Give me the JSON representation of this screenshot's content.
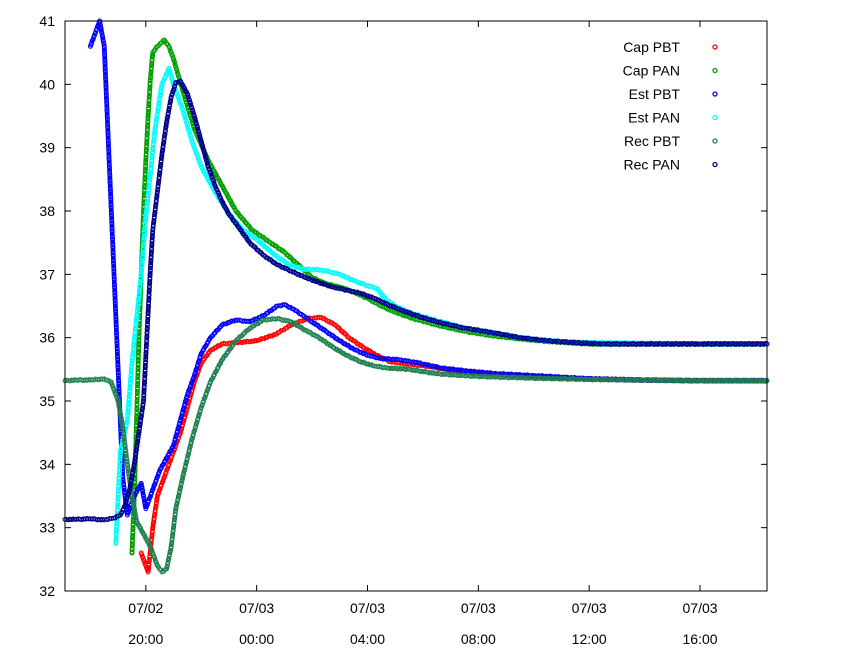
{
  "chart_data": {
    "type": "scatter",
    "title": "",
    "xlabel": "",
    "ylabel": "",
    "x_axis": {
      "type": "time",
      "min": "07/02 17:05",
      "max": "07/03 18:25",
      "ticks": [
        {
          "time": "07/02 20:00",
          "date_label": "07/02",
          "time_label": "20:00"
        },
        {
          "time": "07/03 00:00",
          "date_label": "07/03",
          "time_label": "00:00"
        },
        {
          "time": "07/03 04:00",
          "date_label": "07/03",
          "time_label": "04:00"
        },
        {
          "time": "07/03 08:00",
          "date_label": "07/03",
          "time_label": "08:00"
        },
        {
          "time": "07/03 12:00",
          "date_label": "07/03",
          "time_label": "12:00"
        },
        {
          "time": "07/03 16:00",
          "date_label": "07/03",
          "time_label": "16:00"
        }
      ]
    },
    "ylim": [
      32,
      41
    ],
    "yticks": [
      32,
      33,
      34,
      35,
      36,
      37,
      38,
      39,
      40,
      41
    ],
    "grid": false,
    "legend_position": "top-right",
    "series": [
      {
        "name": "Cap PBT",
        "color": "#ff0000",
        "points": [
          [
            "07/02 19:50",
            32.6
          ],
          [
            "07/02 20:05",
            32.3
          ],
          [
            "07/02 20:15",
            33.0
          ],
          [
            "07/02 20:25",
            33.5
          ],
          [
            "07/02 20:40",
            33.8
          ],
          [
            "07/02 21:00",
            34.2
          ],
          [
            "07/02 21:15",
            34.5
          ],
          [
            "07/02 21:30",
            34.9
          ],
          [
            "07/02 21:45",
            35.3
          ],
          [
            "07/02 22:00",
            35.6
          ],
          [
            "07/02 22:20",
            35.8
          ],
          [
            "07/02 22:45",
            35.9
          ],
          [
            "07/02 23:15",
            35.92
          ],
          [
            "07/03 00:00",
            35.95
          ],
          [
            "07/03 00:40",
            36.05
          ],
          [
            "07/03 01:15",
            36.2
          ],
          [
            "07/03 01:50",
            36.3
          ],
          [
            "07/03 02:20",
            36.32
          ],
          [
            "07/03 02:50",
            36.2
          ],
          [
            "07/03 03:20",
            36.0
          ],
          [
            "07/03 03:50",
            35.85
          ],
          [
            "07/03 04:20",
            35.72
          ],
          [
            "07/03 04:50",
            35.62
          ],
          [
            "07/03 05:30",
            35.58
          ],
          [
            "07/03 06:10",
            35.55
          ],
          [
            "07/03 06:50",
            35.5
          ],
          [
            "07/03 07:40",
            35.45
          ],
          [
            "07/03 08:40",
            35.42
          ],
          [
            "07/03 10:00",
            35.38
          ],
          [
            "07/03 12:00",
            35.35
          ],
          [
            "07/03 14:00",
            35.33
          ],
          [
            "07/03 16:00",
            35.32
          ],
          [
            "07/03 18:25",
            35.32
          ]
        ]
      },
      {
        "name": "Cap PAN",
        "color": "#00a000",
        "points": [
          [
            "07/02 19:30",
            32.6
          ],
          [
            "07/02 19:35",
            33.5
          ],
          [
            "07/02 19:40",
            34.7
          ],
          [
            "07/02 19:45",
            36.0
          ],
          [
            "07/02 19:50",
            37.0
          ],
          [
            "07/02 19:55",
            38.0
          ],
          [
            "07/02 20:00",
            38.8
          ],
          [
            "07/02 20:05",
            39.5
          ],
          [
            "07/02 20:10",
            40.1
          ],
          [
            "07/02 20:15",
            40.5
          ],
          [
            "07/02 20:25",
            40.6
          ],
          [
            "07/02 20:40",
            40.7
          ],
          [
            "07/02 20:50",
            40.6
          ],
          [
            "07/02 21:00",
            40.4
          ],
          [
            "07/02 21:20",
            39.9
          ],
          [
            "07/02 21:45",
            39.3
          ],
          [
            "07/02 22:15",
            38.8
          ],
          [
            "07/02 22:45",
            38.4
          ],
          [
            "07/02 23:15",
            38.0
          ],
          [
            "07/02 23:50",
            37.7
          ],
          [
            "07/03 00:30",
            37.5
          ],
          [
            "07/03 01:00",
            37.35
          ],
          [
            "07/03 01:30",
            37.15
          ],
          [
            "07/03 02:00",
            36.95
          ],
          [
            "07/03 02:30",
            36.85
          ],
          [
            "07/03 03:00",
            36.8
          ],
          [
            "07/03 03:30",
            36.72
          ],
          [
            "07/03 04:00",
            36.62
          ],
          [
            "07/03 04:30",
            36.5
          ],
          [
            "07/03 05:00",
            36.4
          ],
          [
            "07/03 05:40",
            36.3
          ],
          [
            "07/03 06:30",
            36.2
          ],
          [
            "07/03 07:30",
            36.1
          ],
          [
            "07/03 08:30",
            36.03
          ],
          [
            "07/03 09:30",
            35.98
          ],
          [
            "07/03 10:30",
            35.94
          ],
          [
            "07/03 12:00",
            35.9
          ],
          [
            "07/03 14:00",
            35.9
          ],
          [
            "07/03 16:00",
            35.9
          ],
          [
            "07/03 18:25",
            35.9
          ]
        ]
      },
      {
        "name": "Est PBT",
        "color": "#0000ff",
        "points": [
          [
            "07/02 18:00",
            40.6
          ],
          [
            "07/02 18:10",
            40.8
          ],
          [
            "07/02 18:20",
            41.0
          ],
          [
            "07/02 18:30",
            40.6
          ],
          [
            "07/02 19:10",
            33.8
          ],
          [
            "07/02 19:20",
            33.2
          ],
          [
            "07/02 19:35",
            33.5
          ],
          [
            "07/02 19:50",
            33.7
          ],
          [
            "07/02 20:00",
            33.3
          ],
          [
            "07/02 20:15",
            33.6
          ],
          [
            "07/02 20:30",
            33.9
          ],
          [
            "07/02 20:45",
            34.1
          ],
          [
            "07/02 21:00",
            34.3
          ],
          [
            "07/02 21:15",
            34.7
          ],
          [
            "07/02 21:30",
            35.1
          ],
          [
            "07/02 21:45",
            35.4
          ],
          [
            "07/02 22:00",
            35.75
          ],
          [
            "07/02 22:20",
            36.0
          ],
          [
            "07/02 22:45",
            36.2
          ],
          [
            "07/02 23:15",
            36.28
          ],
          [
            "07/02 23:45",
            36.25
          ],
          [
            "07/03 00:15",
            36.35
          ],
          [
            "07/03 00:45",
            36.5
          ],
          [
            "07/03 01:00",
            36.52
          ],
          [
            "07/03 01:20",
            36.45
          ],
          [
            "07/03 01:40",
            36.35
          ],
          [
            "07/03 02:00",
            36.25
          ],
          [
            "07/03 02:30",
            36.1
          ],
          [
            "07/03 03:00",
            35.95
          ],
          [
            "07/03 03:30",
            35.82
          ],
          [
            "07/03 04:00",
            35.72
          ],
          [
            "07/03 04:30",
            35.67
          ],
          [
            "07/03 05:10",
            35.65
          ],
          [
            "07/03 05:50",
            35.6
          ],
          [
            "07/03 06:40",
            35.52
          ],
          [
            "07/03 07:40",
            35.47
          ],
          [
            "07/03 08:40",
            35.43
          ],
          [
            "07/03 10:00",
            35.4
          ],
          [
            "07/03 12:00",
            35.35
          ],
          [
            "07/03 14:00",
            35.33
          ],
          [
            "07/03 16:00",
            35.32
          ],
          [
            "07/03 18:25",
            35.32
          ]
        ]
      },
      {
        "name": "Est PAN",
        "color": "#00ffff",
        "points": [
          [
            "07/02 18:55",
            32.75
          ],
          [
            "07/02 19:05",
            34.2
          ],
          [
            "07/02 19:20",
            34.7
          ],
          [
            "07/02 19:30",
            35.6
          ],
          [
            "07/02 19:40",
            36.3
          ],
          [
            "07/02 19:50",
            37.0
          ],
          [
            "07/02 20:00",
            37.9
          ],
          [
            "07/02 20:10",
            38.6
          ],
          [
            "07/02 20:20",
            39.3
          ],
          [
            "07/02 20:35",
            40.0
          ],
          [
            "07/02 20:50",
            40.25
          ],
          [
            "07/02 21:00",
            40.0
          ],
          [
            "07/02 21:20",
            39.6
          ],
          [
            "07/02 21:40",
            39.1
          ],
          [
            "07/02 22:00",
            38.7
          ],
          [
            "07/02 22:30",
            38.3
          ],
          [
            "07/02 23:00",
            37.95
          ],
          [
            "07/02 23:30",
            37.7
          ],
          [
            "07/03 00:00",
            37.55
          ],
          [
            "07/03 00:40",
            37.3
          ],
          [
            "07/03 01:10",
            37.15
          ],
          [
            "07/03 01:40",
            37.08
          ],
          [
            "07/03 02:20",
            37.07
          ],
          [
            "07/03 03:00",
            37.0
          ],
          [
            "07/03 03:30",
            36.9
          ],
          [
            "07/03 04:00",
            36.82
          ],
          [
            "07/03 04:20",
            36.78
          ],
          [
            "07/03 04:40",
            36.6
          ],
          [
            "07/03 05:00",
            36.5
          ],
          [
            "07/03 05:30",
            36.4
          ],
          [
            "07/03 06:00",
            36.33
          ],
          [
            "07/03 06:40",
            36.25
          ],
          [
            "07/03 07:30",
            36.15
          ],
          [
            "07/03 08:30",
            36.08
          ],
          [
            "07/03 09:30",
            36.0
          ],
          [
            "07/03 10:30",
            35.95
          ],
          [
            "07/03 12:00",
            35.92
          ],
          [
            "07/03 14:00",
            35.91
          ],
          [
            "07/03 16:00",
            35.9
          ],
          [
            "07/03 18:25",
            35.9
          ]
        ]
      },
      {
        "name": "Rec PBT",
        "color": "#208050",
        "points": [
          [
            "07/02 17:05",
            35.32
          ],
          [
            "07/02 17:30",
            35.33
          ],
          [
            "07/02 18:00",
            35.33
          ],
          [
            "07/02 18:30",
            35.35
          ],
          [
            "07/02 18:45",
            35.3
          ],
          [
            "07/02 19:00",
            35.0
          ],
          [
            "07/02 19:10",
            34.6
          ],
          [
            "07/02 19:20",
            34.0
          ],
          [
            "07/02 19:30",
            33.5
          ],
          [
            "07/02 19:40",
            33.1
          ],
          [
            "07/02 19:55",
            32.9
          ],
          [
            "07/02 20:10",
            32.7
          ],
          [
            "07/02 20:25",
            32.4
          ],
          [
            "07/02 20:35",
            32.3
          ],
          [
            "07/02 20:45",
            32.35
          ],
          [
            "07/02 20:55",
            32.7
          ],
          [
            "07/02 21:05",
            33.3
          ],
          [
            "07/02 21:20",
            33.8
          ],
          [
            "07/02 21:40",
            34.4
          ],
          [
            "07/02 22:00",
            34.9
          ],
          [
            "07/02 22:20",
            35.3
          ],
          [
            "07/02 22:45",
            35.65
          ],
          [
            "07/02 23:15",
            35.95
          ],
          [
            "07/02 23:45",
            36.15
          ],
          [
            "07/03 00:15",
            36.28
          ],
          [
            "07/03 00:45",
            36.3
          ],
          [
            "07/03 01:15",
            36.25
          ],
          [
            "07/03 01:45",
            36.12
          ],
          [
            "07/03 02:15",
            36.0
          ],
          [
            "07/03 02:45",
            35.85
          ],
          [
            "07/03 03:15",
            35.72
          ],
          [
            "07/03 03:45",
            35.62
          ],
          [
            "07/03 04:15",
            35.55
          ],
          [
            "07/03 04:45",
            35.52
          ],
          [
            "07/03 05:30",
            35.5
          ],
          [
            "07/03 06:30",
            35.43
          ],
          [
            "07/03 07:30",
            35.4
          ],
          [
            "07/03 08:30",
            35.38
          ],
          [
            "07/03 10:00",
            35.36
          ],
          [
            "07/03 12:00",
            35.34
          ],
          [
            "07/03 14:00",
            35.33
          ],
          [
            "07/03 16:00",
            35.32
          ],
          [
            "07/03 18:25",
            35.32
          ]
        ]
      },
      {
        "name": "Rec PAN",
        "color": "#00008b",
        "points": [
          [
            "07/02 17:05",
            33.13
          ],
          [
            "07/02 17:30",
            33.13
          ],
          [
            "07/02 18:00",
            33.14
          ],
          [
            "07/02 18:30",
            33.12
          ],
          [
            "07/02 18:50",
            33.15
          ],
          [
            "07/02 19:05",
            33.2
          ],
          [
            "07/02 19:15",
            33.35
          ],
          [
            "07/02 19:25",
            33.6
          ],
          [
            "07/02 19:35",
            34.0
          ],
          [
            "07/02 19:45",
            34.5
          ],
          [
            "07/02 19:55",
            35.0
          ],
          [
            "07/02 20:00",
            35.7
          ],
          [
            "07/02 20:05",
            36.4
          ],
          [
            "07/02 20:10",
            37.1
          ],
          [
            "07/02 20:15",
            37.7
          ],
          [
            "07/02 20:25",
            38.3
          ],
          [
            "07/02 20:35",
            38.9
          ],
          [
            "07/02 20:45",
            39.4
          ],
          [
            "07/02 20:55",
            39.8
          ],
          [
            "07/02 21:05",
            40.03
          ],
          [
            "07/02 21:15",
            40.05
          ],
          [
            "07/02 21:30",
            39.85
          ],
          [
            "07/02 21:45",
            39.5
          ],
          [
            "07/02 22:00",
            39.1
          ],
          [
            "07/02 22:15",
            38.7
          ],
          [
            "07/02 22:30",
            38.4
          ],
          [
            "07/02 22:45",
            38.15
          ],
          [
            "07/02 23:00",
            37.95
          ],
          [
            "07/02 23:20",
            37.75
          ],
          [
            "07/02 23:45",
            37.5
          ],
          [
            "07/03 00:15",
            37.3
          ],
          [
            "07/03 00:45",
            37.15
          ],
          [
            "07/03 01:15",
            37.05
          ],
          [
            "07/03 01:45",
            36.95
          ],
          [
            "07/03 02:15",
            36.87
          ],
          [
            "07/03 02:45",
            36.8
          ],
          [
            "07/03 03:15",
            36.75
          ],
          [
            "07/03 03:45",
            36.7
          ],
          [
            "07/03 04:15",
            36.62
          ],
          [
            "07/03 04:45",
            36.52
          ],
          [
            "07/03 05:15",
            36.43
          ],
          [
            "07/03 05:45",
            36.35
          ],
          [
            "07/03 06:30",
            36.25
          ],
          [
            "07/03 07:30",
            36.15
          ],
          [
            "07/03 08:30",
            36.08
          ],
          [
            "07/03 09:30",
            36.0
          ],
          [
            "07/03 10:30",
            35.95
          ],
          [
            "07/03 11:30",
            35.92
          ],
          [
            "07/03 12:30",
            35.9
          ],
          [
            "07/03 14:00",
            35.9
          ],
          [
            "07/03 16:00",
            35.9
          ],
          [
            "07/03 18:25",
            35.9
          ]
        ]
      }
    ]
  }
}
